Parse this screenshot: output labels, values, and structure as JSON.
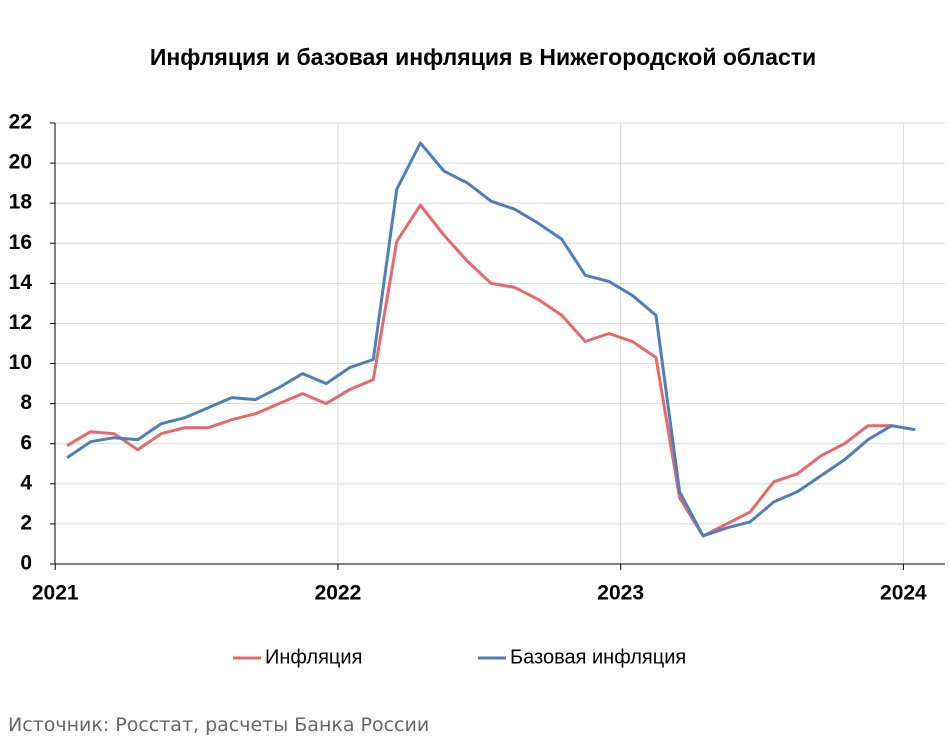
{
  "chart_data": {
    "type": "line",
    "title": "Инфляция и базовая инфляция в Нижегородской области",
    "source": "Источник: Росстат, расчеты Банка России",
    "categories": [
      "2021",
      null,
      null,
      null,
      null,
      null,
      null,
      null,
      null,
      null,
      null,
      null,
      "2022",
      null,
      null,
      null,
      null,
      null,
      null,
      null,
      null,
      null,
      null,
      null,
      "2023",
      null,
      null,
      null,
      null,
      null,
      null,
      null,
      null,
      null,
      null,
      null,
      "2024"
    ],
    "series": [
      {
        "name": "Инфляция",
        "color": "#e8686b",
        "values": [
          5.9,
          6.6,
          6.5,
          5.7,
          6.5,
          6.8,
          6.8,
          7.2,
          7.5,
          8.0,
          8.5,
          8.0,
          8.7,
          9.2,
          16.1,
          17.9,
          16.4,
          15.1,
          14.0,
          13.8,
          13.2,
          12.4,
          11.1,
          11.5,
          11.1,
          10.3,
          3.3,
          1.4,
          2.0,
          2.6,
          4.1,
          4.5,
          5.4,
          6.0,
          6.9,
          6.9,
          6.7
        ]
      },
      {
        "name": "Базовая инфляция",
        "color": "#4f7fba",
        "values": [
          5.3,
          6.1,
          6.3,
          6.2,
          7.0,
          7.3,
          7.8,
          8.3,
          8.2,
          8.8,
          9.5,
          9.0,
          9.8,
          10.2,
          18.7,
          21.0,
          19.6,
          19.0,
          18.1,
          17.7,
          17.0,
          16.2,
          14.4,
          14.1,
          13.4,
          12.4,
          3.6,
          1.4,
          1.8,
          2.1,
          3.1,
          3.6,
          4.4,
          5.2,
          6.2,
          6.9,
          6.7
        ]
      }
    ],
    "ylim": [
      0,
      22
    ],
    "yticks": [
      0,
      2,
      4,
      6,
      8,
      10,
      12,
      14,
      16,
      18,
      20,
      22
    ],
    "grid": true
  }
}
